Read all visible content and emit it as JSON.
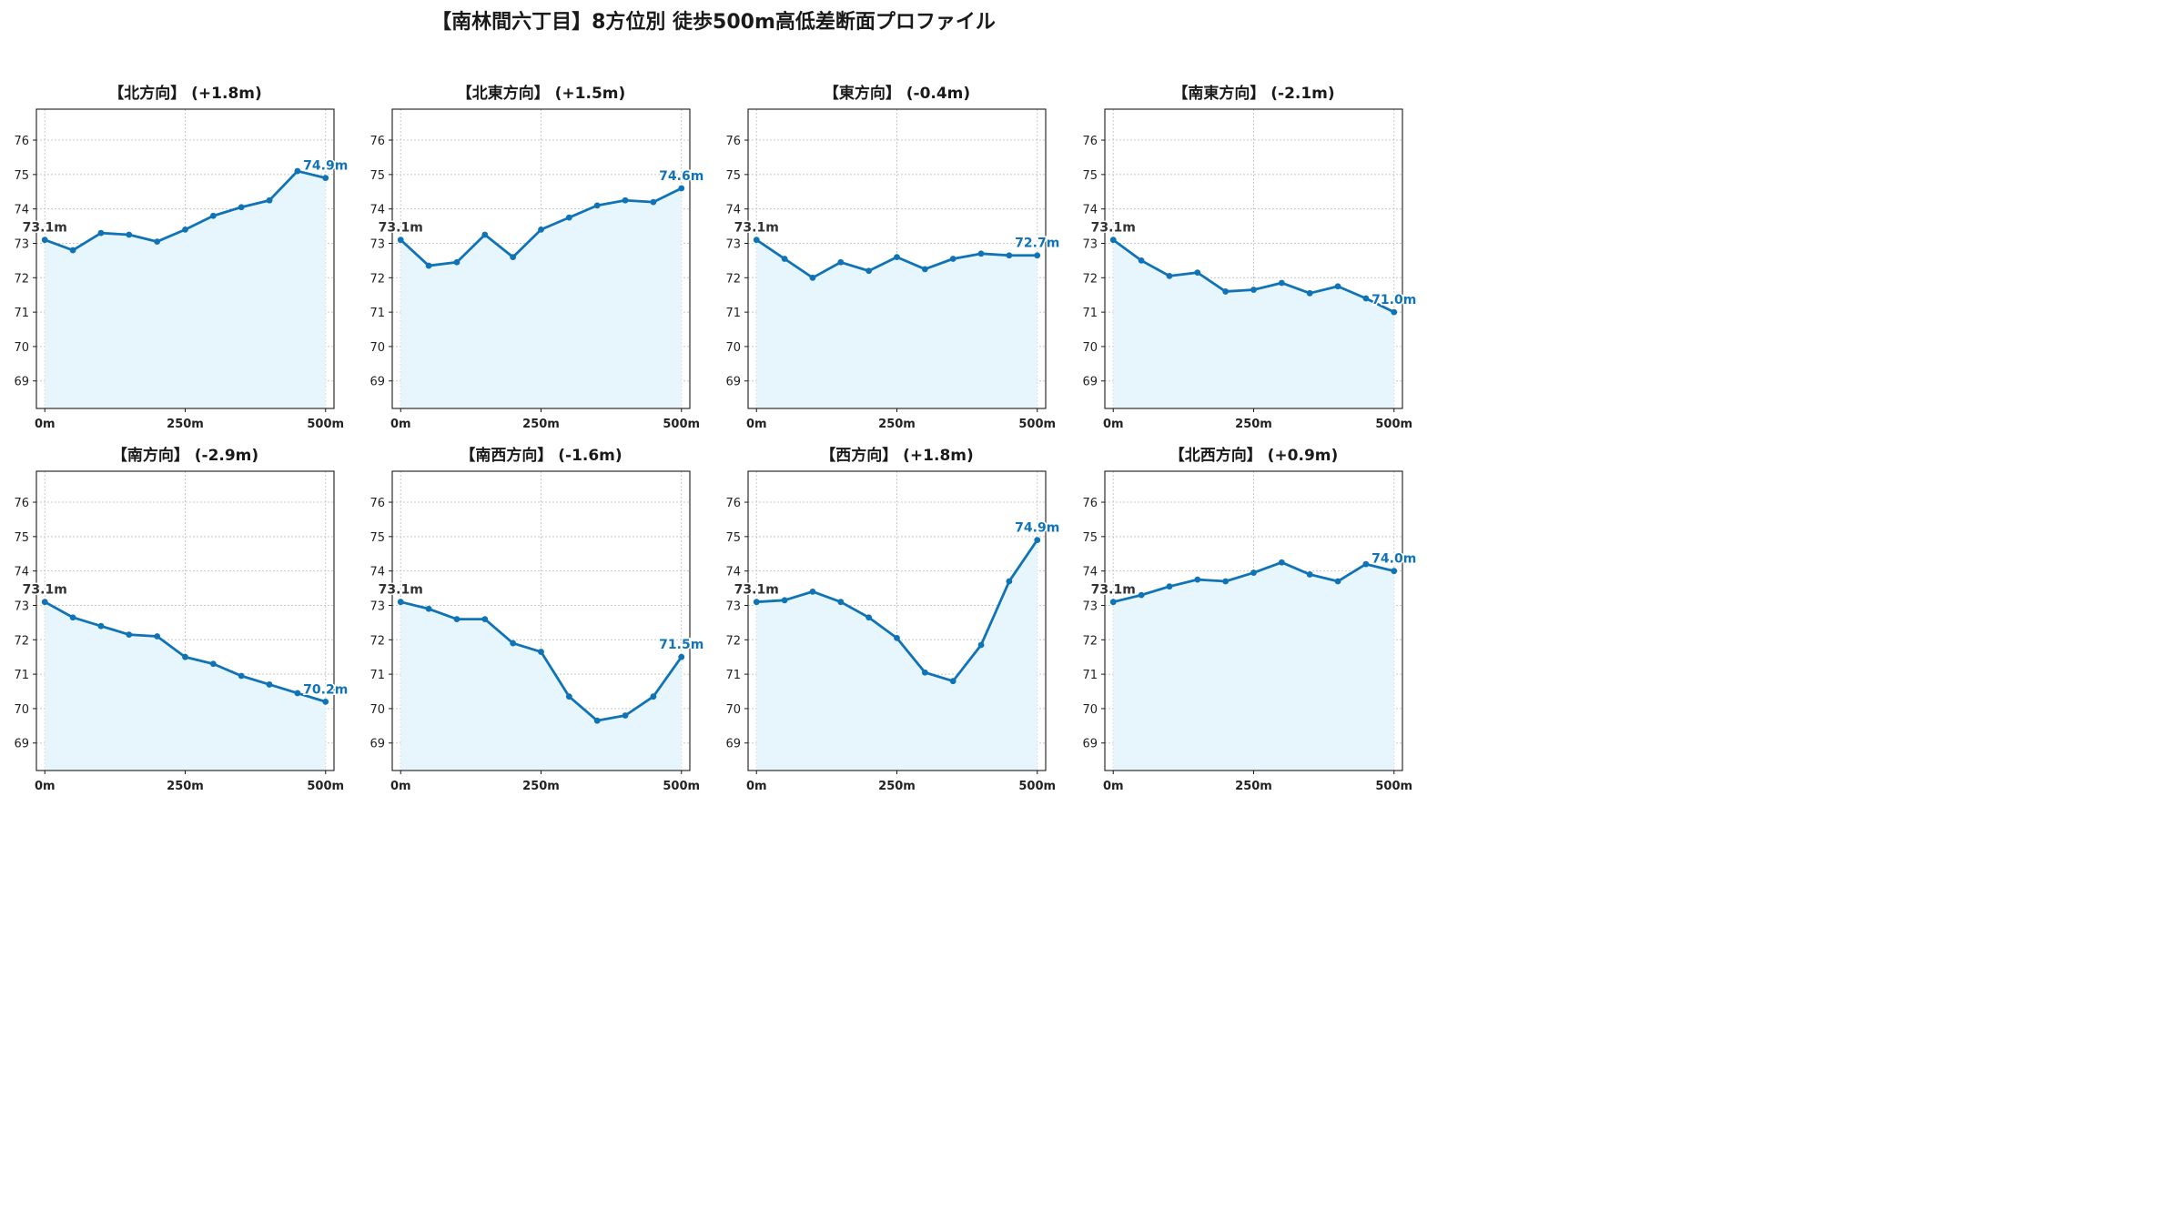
{
  "page": {
    "title": "【南林間六丁目】8方位別 徒歩500m高低差断面プロファイル"
  },
  "colors": {
    "line": "#0f73b6",
    "fill": "#e7f5fc",
    "grid": "#c8c8c8",
    "start_label": "#333333",
    "end_label": "#0f73b6"
  },
  "chart_data": [
    {
      "type": "area",
      "title": "【北方向】 (+1.8m)",
      "x": [
        0,
        50,
        100,
        150,
        200,
        250,
        300,
        350,
        400,
        450,
        500
      ],
      "values": [
        73.1,
        72.8,
        73.3,
        73.25,
        73.05,
        73.4,
        73.8,
        74.05,
        74.25,
        75.1,
        74.9
      ],
      "xticks": [
        0,
        250,
        500
      ],
      "xtick_labels": [
        "0m",
        "250m",
        "500m"
      ],
      "yticks": [
        69,
        70,
        71,
        72,
        73,
        74,
        75,
        76
      ],
      "ylim": [
        68.2,
        76.9
      ],
      "xlim": [
        -15,
        515
      ],
      "start_label": "73.1m",
      "end_label": "74.9m",
      "grid": true
    },
    {
      "type": "area",
      "title": "【北東方向】 (+1.5m)",
      "x": [
        0,
        50,
        100,
        150,
        200,
        250,
        300,
        350,
        400,
        450,
        500
      ],
      "values": [
        73.1,
        72.35,
        72.45,
        73.25,
        72.6,
        73.4,
        73.75,
        74.1,
        74.25,
        74.2,
        74.6
      ],
      "xticks": [
        0,
        250,
        500
      ],
      "xtick_labels": [
        "0m",
        "250m",
        "500m"
      ],
      "yticks": [
        69,
        70,
        71,
        72,
        73,
        74,
        75,
        76
      ],
      "ylim": [
        68.2,
        76.9
      ],
      "xlim": [
        -15,
        515
      ],
      "start_label": "73.1m",
      "end_label": "74.6m",
      "grid": true
    },
    {
      "type": "area",
      "title": "【東方向】 (-0.4m)",
      "x": [
        0,
        50,
        100,
        150,
        200,
        250,
        300,
        350,
        400,
        450,
        500
      ],
      "values": [
        73.1,
        72.55,
        72.0,
        72.45,
        72.2,
        72.6,
        72.25,
        72.55,
        72.7,
        72.65,
        72.65
      ],
      "xticks": [
        0,
        250,
        500
      ],
      "xtick_labels": [
        "0m",
        "250m",
        "500m"
      ],
      "yticks": [
        69,
        70,
        71,
        72,
        73,
        74,
        75,
        76
      ],
      "ylim": [
        68.2,
        76.9
      ],
      "xlim": [
        -15,
        515
      ],
      "start_label": "73.1m",
      "end_label": "72.7m",
      "grid": true
    },
    {
      "type": "area",
      "title": "【南東方向】 (-2.1m)",
      "x": [
        0,
        50,
        100,
        150,
        200,
        250,
        300,
        350,
        400,
        450,
        500
      ],
      "values": [
        73.1,
        72.5,
        72.05,
        72.15,
        71.6,
        71.65,
        71.85,
        71.55,
        71.75,
        71.4,
        71.0
      ],
      "xticks": [
        0,
        250,
        500
      ],
      "xtick_labels": [
        "0m",
        "250m",
        "500m"
      ],
      "yticks": [
        69,
        70,
        71,
        72,
        73,
        74,
        75,
        76
      ],
      "ylim": [
        68.2,
        76.9
      ],
      "xlim": [
        -15,
        515
      ],
      "start_label": "73.1m",
      "end_label": "71.0m",
      "grid": true
    },
    {
      "type": "area",
      "title": "【南方向】 (-2.9m)",
      "x": [
        0,
        50,
        100,
        150,
        200,
        250,
        300,
        350,
        400,
        450,
        500
      ],
      "values": [
        73.1,
        72.65,
        72.4,
        72.15,
        72.1,
        71.5,
        71.3,
        70.95,
        70.7,
        70.45,
        70.2
      ],
      "xticks": [
        0,
        250,
        500
      ],
      "xtick_labels": [
        "0m",
        "250m",
        "500m"
      ],
      "yticks": [
        69,
        70,
        71,
        72,
        73,
        74,
        75,
        76
      ],
      "ylim": [
        68.2,
        76.9
      ],
      "xlim": [
        -15,
        515
      ],
      "start_label": "73.1m",
      "end_label": "70.2m",
      "grid": true
    },
    {
      "type": "area",
      "title": "【南西方向】 (-1.6m)",
      "x": [
        0,
        50,
        100,
        150,
        200,
        250,
        300,
        350,
        400,
        450,
        500
      ],
      "values": [
        73.1,
        72.9,
        72.6,
        72.6,
        71.9,
        71.65,
        70.35,
        69.65,
        69.8,
        70.35,
        71.5
      ],
      "xticks": [
        0,
        250,
        500
      ],
      "xtick_labels": [
        "0m",
        "250m",
        "500m"
      ],
      "yticks": [
        69,
        70,
        71,
        72,
        73,
        74,
        75,
        76
      ],
      "ylim": [
        68.2,
        76.9
      ],
      "xlim": [
        -15,
        515
      ],
      "start_label": "73.1m",
      "end_label": "71.5m",
      "grid": true
    },
    {
      "type": "area",
      "title": "【西方向】 (+1.8m)",
      "x": [
        0,
        50,
        100,
        150,
        200,
        250,
        300,
        350,
        400,
        450,
        500
      ],
      "values": [
        73.1,
        73.15,
        73.4,
        73.1,
        72.65,
        72.05,
        71.05,
        70.8,
        71.85,
        73.7,
        74.9
      ],
      "xticks": [
        0,
        250,
        500
      ],
      "xtick_labels": [
        "0m",
        "250m",
        "500m"
      ],
      "yticks": [
        69,
        70,
        71,
        72,
        73,
        74,
        75,
        76
      ],
      "ylim": [
        68.2,
        76.9
      ],
      "xlim": [
        -15,
        515
      ],
      "start_label": "73.1m",
      "end_label": "74.9m",
      "grid": true
    },
    {
      "type": "area",
      "title": "【北西方向】 (+0.9m)",
      "x": [
        0,
        50,
        100,
        150,
        200,
        250,
        300,
        350,
        400,
        450,
        500
      ],
      "values": [
        73.1,
        73.3,
        73.55,
        73.75,
        73.7,
        73.95,
        74.25,
        73.9,
        73.7,
        74.2,
        74.0
      ],
      "xticks": [
        0,
        250,
        500
      ],
      "xtick_labels": [
        "0m",
        "250m",
        "500m"
      ],
      "yticks": [
        69,
        70,
        71,
        72,
        73,
        74,
        75,
        76
      ],
      "ylim": [
        68.2,
        76.9
      ],
      "xlim": [
        -15,
        515
      ],
      "start_label": "73.1m",
      "end_label": "74.0m",
      "grid": true
    }
  ]
}
